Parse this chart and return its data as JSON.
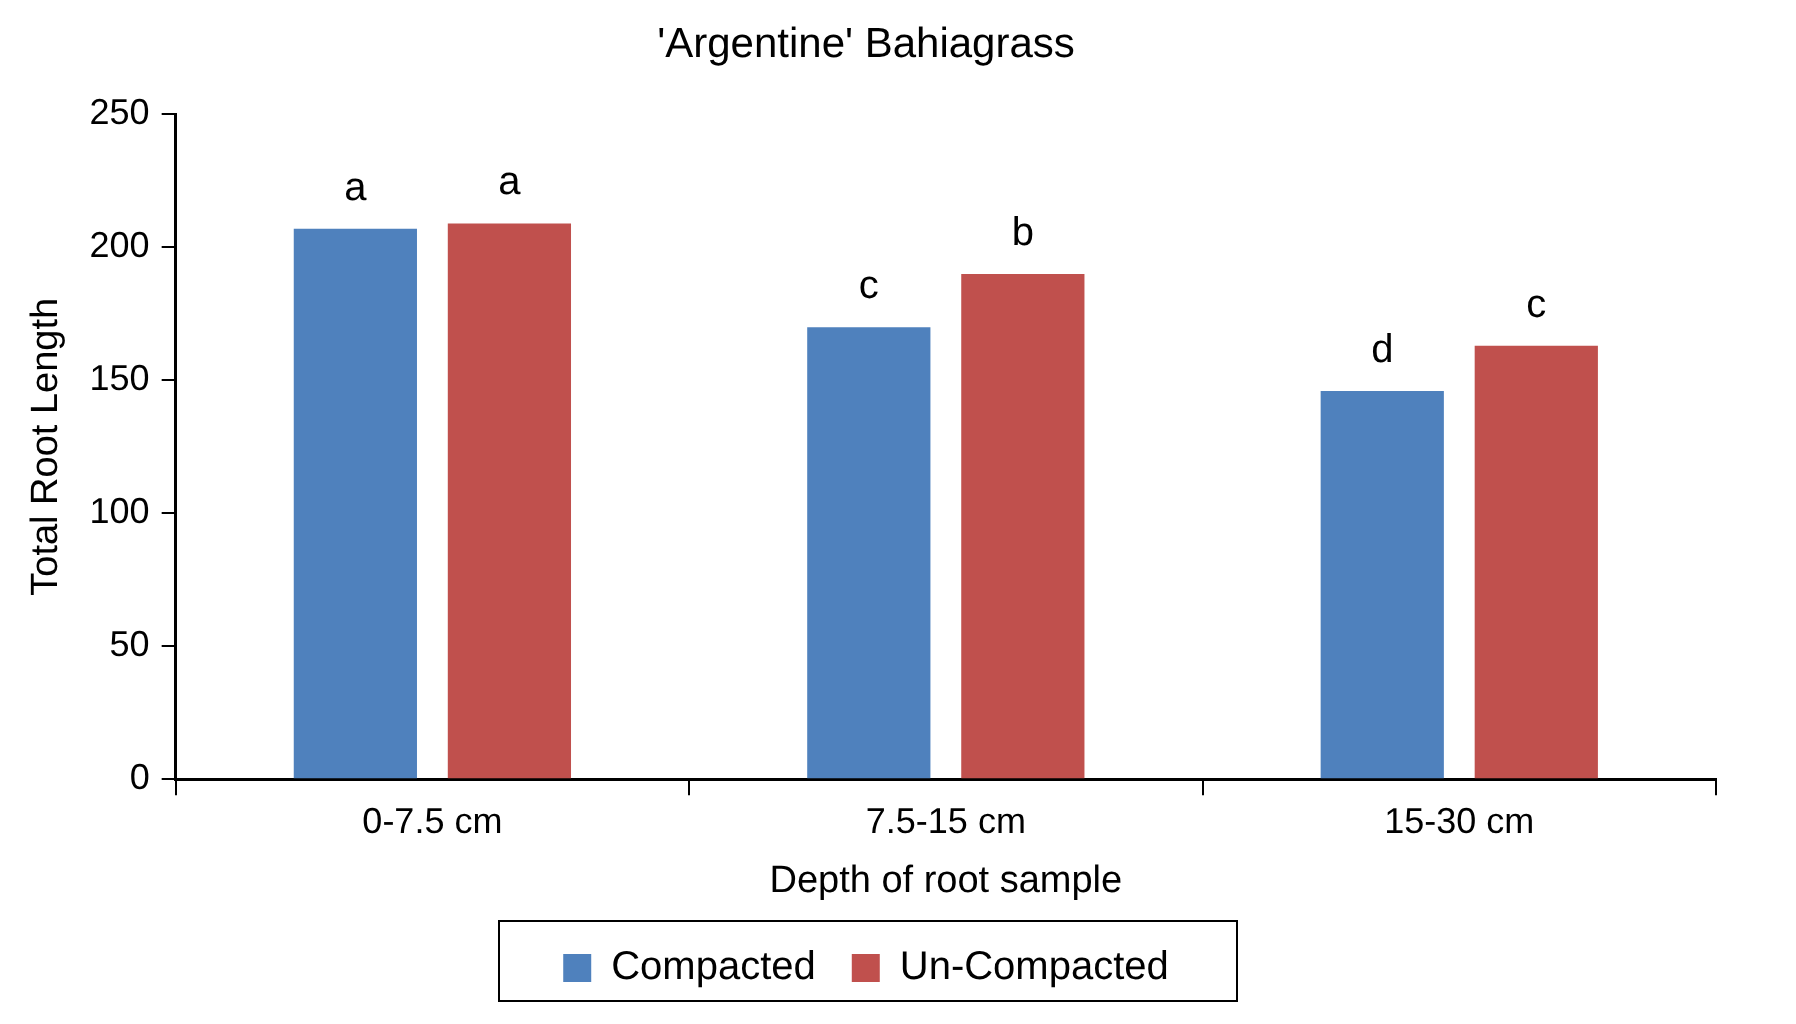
{
  "chart_data": {
    "type": "bar",
    "title": "'Argentine' Bahiagrass",
    "xlabel": "Depth of root sample",
    "ylabel": "Total Root Length",
    "categories": [
      "0-7.5 cm",
      "7.5-15 cm",
      "15-30 cm"
    ],
    "series": [
      {
        "name": "Compacted",
        "color": "#4f81bd",
        "values": [
          207,
          170,
          146
        ],
        "value_labels": [
          "a",
          "c",
          "d"
        ]
      },
      {
        "name": "Un-Compacted",
        "color": "#c0504d",
        "values": [
          209,
          190,
          163
        ],
        "value_labels": [
          "a",
          "b",
          "c"
        ]
      }
    ],
    "ylim": [
      0,
      250
    ],
    "yticks": [
      0,
      50,
      100,
      150,
      200,
      250
    ],
    "grid": false,
    "legend": "bottom"
  }
}
